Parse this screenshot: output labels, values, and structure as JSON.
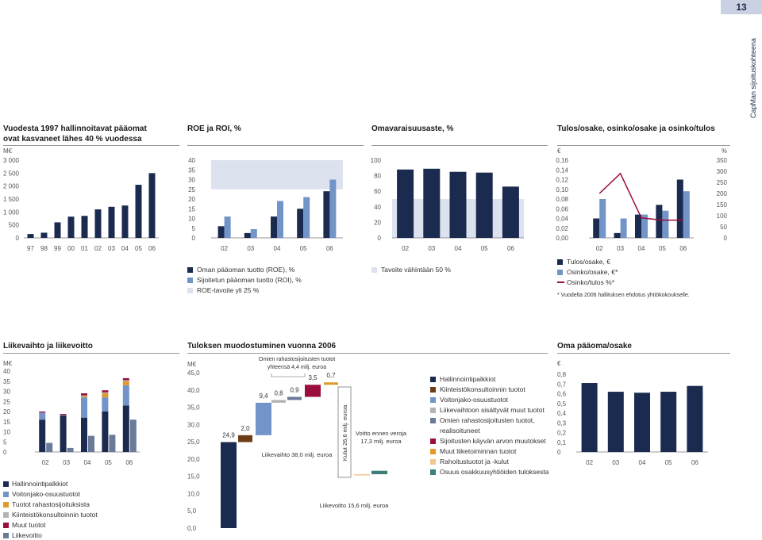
{
  "page": {
    "number": "13",
    "side_label": "CapMan sijoituskohteena"
  },
  "colors": {
    "navy": "#1b2a4f",
    "blue": "#7294c8",
    "band": "#dde2ef",
    "crimson": "#9b0d3d",
    "orange": "#e19a2a",
    "grey": "#b3b3b3",
    "slate": "#6a7a99",
    "brown": "#6d3d17",
    "sand": "#f2c690",
    "teal": "#3b7f78"
  },
  "chart_data": [
    {
      "id": "aum",
      "type": "bar",
      "title": "Vuodesta 1997 hallinnoitavat pääomat ovat kasvaneet lähes 40 % vuodessa",
      "title_lines": [
        "Vuodesta 1997 hallinnoitavat pääomat",
        "ovat kasvaneet lähes 40 % vuodessa"
      ],
      "ylabel": "M€",
      "categories": [
        "97",
        "98",
        "99",
        "00",
        "01",
        "02",
        "03",
        "04",
        "05",
        "06"
      ],
      "values": [
        150,
        200,
        600,
        820,
        850,
        1100,
        1200,
        1250,
        2050,
        2500
      ],
      "ylim": [
        0,
        3000
      ],
      "yticks": [
        "0",
        "500",
        "1 000",
        "1 500",
        "2 000",
        "2 500",
        "3 000"
      ]
    },
    {
      "id": "roe",
      "type": "bar",
      "title": "ROE ja ROI, %",
      "categories": [
        "02",
        "03",
        "04",
        "05",
        "06"
      ],
      "series": [
        {
          "name": "Oman pääoman tuotto (ROE), %",
          "values": [
            6,
            2.5,
            11,
            15,
            24
          ]
        },
        {
          "name": "Sijoitetun pääoman tuotto (ROI), %",
          "values": [
            11,
            4.5,
            19,
            21,
            30
          ]
        }
      ],
      "band": {
        "name": "ROE-tavoite yli 25 %",
        "from": 25,
        "to": 40
      },
      "ylim": [
        0,
        40
      ],
      "yticks": [
        "0",
        "5",
        "10",
        "15",
        "20",
        "25",
        "30",
        "35",
        "40"
      ]
    },
    {
      "id": "equity_ratio",
      "type": "bar",
      "title": "Omavaraisuusaste, %",
      "categories": [
        "02",
        "03",
        "04",
        "05",
        "06"
      ],
      "values": [
        88,
        89,
        85,
        84,
        66
      ],
      "band": {
        "name": "Tavoite vähintään 50 %",
        "from": 0,
        "to": 50
      },
      "ylim": [
        0,
        100
      ],
      "yticks": [
        "0",
        "20",
        "40",
        "60",
        "80",
        "100"
      ]
    },
    {
      "id": "eps",
      "type": "bar",
      "title": "Tulos/osake, osinko/osake ja osinko/tulos",
      "left_unit": "€",
      "right_unit": "%",
      "categories": [
        "02",
        "03",
        "04",
        "05",
        "06"
      ],
      "series": [
        {
          "name": "Tulos/osake, €",
          "values": [
            0.04,
            0.01,
            0.048,
            0.068,
            0.12
          ]
        },
        {
          "name": "Osinko/osake, €*",
          "values": [
            0.08,
            0.04,
            0.048,
            0.056,
            0.096
          ]
        }
      ],
      "line": {
        "name": "Osinko/tulos %*",
        "values": [
          200,
          290,
          90,
          80,
          80
        ]
      },
      "ylim": [
        0,
        0.16
      ],
      "y2lim": [
        0,
        350
      ],
      "yticks": [
        "0,00",
        "0,02",
        "0,04",
        "0,06",
        "0,08",
        "0,10",
        "0,12",
        "0,14",
        "0,16"
      ],
      "y2ticks": [
        "0",
        "50",
        "100",
        "150",
        "200",
        "250",
        "300",
        "350"
      ],
      "footnote": "* Vuodelta 2006 hallituksen ehdotus yhtiökokoukselle."
    },
    {
      "id": "revenue",
      "type": "bar",
      "title": "Liikevaihto ja liikevoitto",
      "ylabel": "M€",
      "categories": [
        "02",
        "03",
        "04",
        "05",
        "06"
      ],
      "stack_series": [
        {
          "name": "Hallinnointipalkkiot",
          "values": [
            16,
            18,
            17,
            20,
            23
          ]
        },
        {
          "name": "Voitonjako-osuustuotot",
          "values": [
            3.5,
            0.3,
            10,
            7,
            10
          ]
        },
        {
          "name": "Tuotot rahastosijoituksista",
          "values": [
            0,
            0,
            0.6,
            2,
            2
          ]
        },
        {
          "name": "Kiinteistökonsultoinnin tuotot",
          "values": [
            0,
            0,
            0.4,
            0.5,
            0.5
          ]
        },
        {
          "name": "Muut tuotot",
          "values": [
            0.5,
            0.5,
            1,
            1,
            1
          ]
        }
      ],
      "side_series": {
        "name": "Liikevoitto",
        "values": [
          4.5,
          2,
          8,
          8.5,
          16
        ]
      },
      "ylim": [
        0,
        40
      ],
      "yticks": [
        "0",
        "5",
        "10",
        "15",
        "20",
        "25",
        "30",
        "35",
        "40"
      ]
    },
    {
      "id": "waterfall",
      "type": "bar",
      "title": "Tuloksen muodostuminen vuonna 2006",
      "ylabel": "M€",
      "steps": [
        {
          "label": "24,9",
          "from": 0,
          "to": 24.9
        },
        {
          "label": "2,0",
          "from": 24.9,
          "to": 26.9
        },
        {
          "label": "9,4",
          "from": 26.9,
          "to": 36.3
        },
        {
          "label": "0,8",
          "from": 36.3,
          "to": 37.1
        },
        {
          "label": "0,9",
          "from": 37.1,
          "to": 38.0
        },
        {
          "label": "3,5",
          "from": 38.0,
          "to": 41.5
        },
        {
          "label": "0,7",
          "from": 41.5,
          "to": 42.2
        },
        {
          "label": "",
          "from": 15.4,
          "to": 15.6
        },
        {
          "label": "",
          "from": 15.6,
          "to": 16.6
        }
      ],
      "annotations": {
        "omien": "Omien rahastosijoitusten tuotot yhteensä 4,4 milj. euroa",
        "omien_lines": [
          "Omien rahastosijoitusten tuotot",
          "yhteensä 4,4 milj. euroa"
        ],
        "liikevaihto": "Liikevaihto 38,0 milj. euroa",
        "kulut": "Kulut 26,6 milj. euroa",
        "voitto": "Voitto ennen veroja 17,3 milj. euroa",
        "voitto_lines": [
          "Voitto ennen veroja",
          "17,3 milj. euroa"
        ],
        "liikevoitto": "Liikevoitto 15,6 milj. euroa"
      },
      "legend": [
        {
          "name": "Hallinnointipalkkiot"
        },
        {
          "name": "Kiinteistökonsultoinnin tuotot"
        },
        {
          "name": "Voitonjako-osuustuotot"
        },
        {
          "name": "Liikevaihtoon sisältyvät muut tuotot"
        },
        {
          "name": "Omien rahastosijoitusten tuotot, realisoituneet"
        },
        {
          "name": "Sijoitusten käyvän arvon muutokset"
        },
        {
          "name": "Muut liiketoiminnan tuotot"
        },
        {
          "name": "Rahoitustuotot ja -kulut"
        },
        {
          "name": "Osuus osakkuusyhtiöiden tuloksesta"
        }
      ],
      "legend_line5a": "Omien rahastosijoitusten tuotot,",
      "legend_line5b": "realisoituneet",
      "ylim": [
        0,
        45
      ],
      "yticks": [
        "0,0",
        "5,0",
        "10,0",
        "15,0",
        "20,0",
        "25,0",
        "30,0",
        "35,0",
        "40,0",
        "45,0"
      ]
    },
    {
      "id": "equity_per_share",
      "type": "bar",
      "title": "Oma pääoma/osake",
      "ylabel": "€",
      "categories": [
        "02",
        "03",
        "04",
        "05",
        "06"
      ],
      "values": [
        0.71,
        0.62,
        0.61,
        0.62,
        0.68
      ],
      "ylim": [
        0,
        0.8
      ],
      "yticks": [
        "0",
        "0,1",
        "0,2",
        "0,3",
        "0,4",
        "0,5",
        "0,6",
        "0,7",
        "0,8"
      ]
    }
  ]
}
